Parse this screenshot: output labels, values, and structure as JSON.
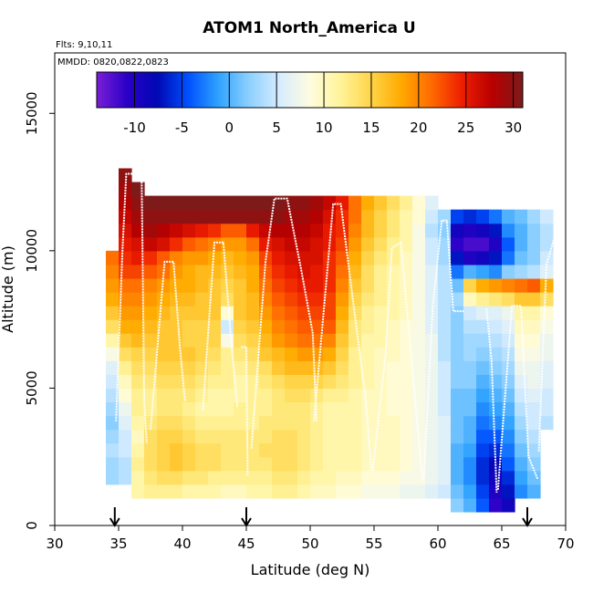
{
  "chart_data": {
    "type": "heatmap",
    "title": "ATOM1 North_America U",
    "subtitle_flights": "Flts: 9,10,11",
    "subtitle_dates": "MMDD: 0820,0822,0823",
    "xlabel": "Latitude (deg N)",
    "ylabel": "Altitude (m)",
    "xlim": [
      30,
      70
    ],
    "ylim": [
      0,
      17200
    ],
    "x_ticks": [
      30,
      35,
      40,
      45,
      50,
      55,
      60,
      65,
      70
    ],
    "y_ticks": [
      0,
      5000,
      10000,
      15000
    ],
    "colorbar": {
      "min": -14,
      "max": 31,
      "ticks": [
        -10,
        -5,
        0,
        5,
        10,
        15,
        20,
        25,
        30
      ],
      "colors": [
        "#7a1fd6",
        "#2a00c8",
        "#0008b4",
        "#0050ff",
        "#2fa2ff",
        "#8cd0ff",
        "#d6ecff",
        "#fffce0",
        "#fff49a",
        "#ffd54a",
        "#ffaa00",
        "#ff6a00",
        "#ee1e00",
        "#b80000",
        "#7d1a1a"
      ]
    },
    "flight_markers_latitude": [
      34.7,
      45.0,
      67.0
    ],
    "grid": false,
    "cell_resolution": {
      "lat_deg": 1,
      "alt_m": 500
    },
    "columns": [
      {
        "lat": 34.5,
        "bottom": 1500,
        "top": 10000,
        "values": [
          3,
          3,
          4,
          3,
          2,
          3,
          4,
          5,
          6,
          8,
          11,
          14,
          16,
          18,
          19,
          20,
          21
        ]
      },
      {
        "lat": 35.5,
        "bottom": 1500,
        "top": 13000,
        "values": [
          4,
          4,
          5,
          5,
          6,
          7,
          9,
          10,
          12,
          14,
          16,
          18,
          19,
          20,
          21,
          23,
          24,
          25,
          26,
          27,
          28,
          29,
          30
        ]
      },
      {
        "lat": 36.5,
        "bottom": 1000,
        "top": 12500,
        "values": [
          11,
          11,
          12,
          11,
          10,
          11,
          12,
          12,
          13,
          14,
          15,
          17,
          18,
          19,
          20,
          21,
          23,
          25,
          26,
          28,
          29,
          30,
          31
        ]
      },
      {
        "lat": 37.5,
        "bottom": 1000,
        "top": 12000,
        "values": [
          12,
          13,
          14,
          14,
          14,
          13,
          12,
          12,
          13,
          14,
          15,
          16,
          17,
          18,
          19,
          20,
          22,
          24,
          27,
          29,
          30,
          31
        ]
      },
      {
        "lat": 38.5,
        "bottom": 1000,
        "top": 12000,
        "values": [
          12,
          14,
          15,
          15,
          15,
          14,
          13,
          13,
          14,
          15,
          16,
          16,
          16,
          17,
          18,
          19,
          21,
          22,
          26,
          28,
          30,
          31
        ]
      },
      {
        "lat": 39.5,
        "bottom": 1000,
        "top": 12000,
        "values": [
          12,
          14,
          16,
          16,
          15,
          14,
          13,
          13,
          14,
          15,
          16,
          16,
          16,
          16,
          17,
          18,
          19,
          20,
          24,
          27,
          30,
          31
        ]
      },
      {
        "lat": 40.5,
        "bottom": 1000,
        "top": 12000,
        "values": [
          11,
          13,
          15,
          15,
          14,
          13,
          12,
          13,
          14,
          15,
          16,
          15,
          15,
          16,
          17,
          18,
          18,
          19,
          22,
          26,
          30,
          31
        ]
      },
      {
        "lat": 41.5,
        "bottom": 1000,
        "top": 12000,
        "values": [
          11,
          13,
          14,
          14,
          13,
          12,
          11,
          12,
          13,
          14,
          15,
          15,
          15,
          16,
          16,
          17,
          17,
          19,
          21,
          25,
          30,
          31
        ]
      },
      {
        "lat": 42.5,
        "bottom": 1000,
        "top": 12000,
        "values": [
          11,
          12,
          14,
          14,
          13,
          12,
          11,
          11,
          12,
          13,
          14,
          15,
          15,
          16,
          16,
          16,
          17,
          18,
          20,
          24,
          30,
          31
        ]
      },
      {
        "lat": 43.5,
        "bottom": 1000,
        "top": 12000,
        "values": [
          10,
          12,
          13,
          13,
          13,
          12,
          11,
          11,
          12,
          12,
          12,
          8,
          5,
          9,
          14,
          15,
          16,
          17,
          19,
          22,
          30,
          31
        ]
      },
      {
        "lat": 44.5,
        "bottom": 1000,
        "top": 12000,
        "values": [
          10,
          12,
          13,
          13,
          13,
          12,
          12,
          11,
          11,
          12,
          13,
          14,
          15,
          16,
          16,
          16,
          17,
          18,
          19,
          22,
          30,
          31
        ]
      },
      {
        "lat": 45.5,
        "bottom": 1000,
        "top": 12000,
        "values": [
          11,
          12,
          13,
          13,
          13,
          12,
          12,
          12,
          12,
          13,
          14,
          15,
          16,
          17,
          17,
          18,
          18,
          19,
          21,
          25,
          30,
          31
        ]
      },
      {
        "lat": 46.5,
        "bottom": 1000,
        "top": 12000,
        "values": [
          11,
          12,
          13,
          14,
          13,
          13,
          12,
          12,
          13,
          14,
          16,
          17,
          18,
          19,
          20,
          21,
          22,
          23,
          25,
          27,
          30,
          31
        ]
      },
      {
        "lat": 47.5,
        "bottom": 1000,
        "top": 12000,
        "values": [
          12,
          13,
          14,
          14,
          14,
          13,
          13,
          13,
          14,
          16,
          17,
          19,
          20,
          21,
          22,
          23,
          24,
          25,
          26,
          28,
          30,
          31
        ]
      },
      {
        "lat": 48.5,
        "bottom": 1000,
        "top": 12000,
        "values": [
          12,
          13,
          14,
          14,
          14,
          13,
          13,
          14,
          15,
          17,
          18,
          20,
          21,
          22,
          23,
          24,
          25,
          26,
          27,
          28,
          29,
          30
        ]
      },
      {
        "lat": 49.5,
        "bottom": 1000,
        "top": 12000,
        "values": [
          11,
          12,
          13,
          13,
          13,
          13,
          13,
          14,
          15,
          17,
          19,
          21,
          22,
          23,
          24,
          25,
          26,
          26,
          27,
          28,
          29,
          30
        ]
      },
      {
        "lat": 50.5,
        "bottom": 1000,
        "top": 12000,
        "values": [
          10,
          11,
          12,
          12,
          12,
          12,
          12,
          13,
          15,
          17,
          19,
          21,
          22,
          23,
          24,
          25,
          25,
          26,
          26,
          27,
          28,
          29
        ]
      },
      {
        "lat": 51.5,
        "bottom": 1000,
        "top": 12000,
        "values": [
          10,
          11,
          11,
          11,
          11,
          11,
          11,
          12,
          14,
          16,
          18,
          20,
          22,
          23,
          23,
          24,
          24,
          24,
          25,
          25,
          26,
          27
        ]
      },
      {
        "lat": 52.5,
        "bottom": 1000,
        "top": 12000,
        "values": [
          9,
          10,
          11,
          11,
          11,
          11,
          11,
          12,
          13,
          14,
          15,
          16,
          17,
          18,
          19,
          20,
          21,
          22,
          23,
          24,
          24,
          25
        ]
      },
      {
        "lat": 53.5,
        "bottom": 1000,
        "top": 12000,
        "values": [
          9,
          10,
          11,
          11,
          11,
          11,
          11,
          11,
          12,
          12,
          12,
          13,
          13,
          14,
          15,
          16,
          17,
          18,
          19,
          20,
          21,
          21
        ]
      },
      {
        "lat": 54.5,
        "bottom": 1000,
        "top": 12000,
        "values": [
          8,
          9,
          10,
          10,
          10,
          10,
          10,
          10,
          11,
          11,
          11,
          11,
          12,
          12,
          13,
          14,
          14,
          15,
          16,
          17,
          17,
          18
        ]
      },
      {
        "lat": 55.5,
        "bottom": 1000,
        "top": 12000,
        "values": [
          8,
          9,
          10,
          10,
          10,
          10,
          10,
          10,
          10,
          10,
          10,
          11,
          11,
          11,
          12,
          12,
          12,
          13,
          14,
          15,
          15,
          16
        ]
      },
      {
        "lat": 56.5,
        "bottom": 1000,
        "top": 12000,
        "values": [
          8,
          9,
          10,
          10,
          10,
          10,
          9,
          9,
          9,
          9,
          10,
          10,
          10,
          11,
          11,
          11,
          11,
          12,
          12,
          13,
          13,
          14
        ]
      },
      {
        "lat": 57.5,
        "bottom": 1000,
        "top": 12000,
        "values": [
          7,
          8,
          9,
          9,
          9,
          9,
          9,
          9,
          9,
          9,
          9,
          9,
          9,
          10,
          10,
          10,
          10,
          10,
          11,
          11,
          11,
          12
        ]
      },
      {
        "lat": 58.5,
        "bottom": 1000,
        "top": 12000,
        "values": [
          7,
          8,
          8,
          8,
          8,
          8,
          8,
          8,
          8,
          8,
          8,
          8,
          8,
          8,
          8,
          8,
          8,
          8,
          8,
          8,
          9,
          9
        ]
      },
      {
        "lat": 59.5,
        "bottom": 1000,
        "top": 12000,
        "values": [
          6,
          7,
          7,
          7,
          7,
          7,
          7,
          7,
          7,
          7,
          7,
          7,
          6,
          6,
          6,
          6,
          6,
          5,
          5,
          4,
          5,
          6
        ]
      },
      {
        "lat": 60.5,
        "bottom": 1000,
        "top": 11500,
        "values": [
          5,
          6,
          6,
          6,
          6,
          6,
          5,
          5,
          5,
          5,
          4,
          4,
          4,
          4,
          4,
          4,
          4,
          3,
          3,
          2,
          3
        ]
      },
      {
        "lat": 61.5,
        "bottom": 500,
        "top": 11500,
        "values": [
          2,
          1,
          0,
          0,
          0,
          1,
          1,
          1,
          1,
          2,
          2,
          2,
          2,
          2,
          2,
          3,
          1,
          -3,
          -7,
          -11,
          -9,
          -5
        ]
      },
      {
        "lat": 62.5,
        "bottom": 500,
        "top": 11500,
        "values": [
          0,
          -1,
          -2,
          -2,
          -1,
          0,
          0,
          1,
          1,
          2,
          2,
          3,
          3,
          4,
          5,
          10,
          15,
          0,
          -10,
          -12,
          -10,
          -6
        ]
      },
      {
        "lat": 63.5,
        "bottom": 500,
        "top": 11500,
        "values": [
          -4,
          -5,
          -6,
          -6,
          -5,
          -4,
          -3,
          -2,
          -1,
          0,
          1,
          2,
          3,
          4,
          6,
          12,
          18,
          -1,
          -9,
          -12,
          -9,
          -5
        ]
      },
      {
        "lat": 64.5,
        "bottom": 500,
        "top": 11500,
        "values": [
          -11,
          -10,
          -9,
          -8,
          -6,
          -4,
          -2,
          -1,
          0,
          1,
          2,
          3,
          4,
          5,
          6,
          13,
          19,
          -2,
          -7,
          -10,
          -7,
          -3
        ]
      },
      {
        "lat": 65.5,
        "bottom": 500,
        "top": 11500,
        "values": [
          -9,
          -7,
          -6,
          -4,
          -3,
          -2,
          -1,
          0,
          1,
          2,
          3,
          4,
          5,
          6,
          7,
          14,
          20,
          2,
          -3,
          -4,
          -2,
          0
        ]
      },
      {
        "lat": 66.5,
        "bottom": 1000,
        "top": 11500,
        "values": [
          -2,
          -1,
          0,
          1,
          2,
          3,
          4,
          5,
          6,
          7,
          8,
          9,
          10,
          11,
          16,
          21,
          3,
          1,
          0,
          0,
          1
        ]
      },
      {
        "lat": 67.5,
        "bottom": 1000,
        "top": 11500,
        "values": [
          0,
          1,
          2,
          3,
          4,
          5,
          5,
          6,
          7,
          7,
          8,
          9,
          10,
          11,
          16,
          22,
          4,
          2,
          2,
          2,
          3
        ]
      },
      {
        "lat": 68.5,
        "bottom": 3500,
        "top": 11500,
        "values": [
          4,
          5,
          5,
          6,
          6,
          7,
          7,
          8,
          9,
          14,
          18,
          6,
          5,
          4,
          4,
          5
        ]
      }
    ],
    "flight_tracks": [
      [
        [
          34.8,
          3800
        ],
        [
          35.3,
          10000
        ],
        [
          35.6,
          12800
        ],
        [
          36.8,
          12800
        ],
        [
          36.9,
          9000
        ],
        [
          37.0,
          4500
        ],
        [
          37.2,
          3000
        ]
      ],
      [
        [
          37.5,
          3500
        ],
        [
          38.6,
          9600
        ],
        [
          39.3,
          9600
        ],
        [
          39.8,
          6500
        ],
        [
          40.2,
          4500
        ]
      ],
      [
        [
          41.6,
          4200
        ],
        [
          42.5,
          10300
        ],
        [
          43.2,
          10300
        ],
        [
          43.8,
          6800
        ],
        [
          44.3,
          4300
        ]
      ],
      [
        [
          44.6,
          6500
        ],
        [
          45.0,
          6500
        ],
        [
          45.1,
          1800
        ]
      ],
      [
        [
          45.4,
          2800
        ],
        [
          46.5,
          9600
        ],
        [
          47.2,
          11900
        ],
        [
          48.2,
          11900
        ],
        [
          49.3,
          9300
        ],
        [
          50.2,
          7000
        ],
        [
          50.5,
          3800
        ]
      ],
      [
        [
          50.3,
          3800
        ],
        [
          51.8,
          11700
        ],
        [
          52.4,
          11700
        ],
        [
          53.4,
          8000
        ],
        [
          54.3,
          4800
        ],
        [
          54.8,
          2000
        ]
      ],
      [
        [
          54.9,
          2000
        ],
        [
          55.9,
          6200
        ],
        [
          56.4,
          10100
        ],
        [
          57.1,
          10300
        ],
        [
          57.9,
          6200
        ],
        [
          58.8,
          1600
        ]
      ],
      [
        [
          58.9,
          1700
        ],
        [
          59.6,
          8000
        ],
        [
          60.3,
          11100
        ],
        [
          60.7,
          11100
        ],
        [
          61.2,
          7800
        ],
        [
          62.0,
          7800
        ]
      ],
      [
        [
          63.8,
          7900
        ],
        [
          64.2,
          6000
        ],
        [
          64.6,
          1200
        ]
      ],
      [
        [
          64.7,
          1300
        ],
        [
          65.8,
          8000
        ],
        [
          66.5,
          8000
        ],
        [
          67.1,
          2500
        ],
        [
          67.8,
          1700
        ]
      ],
      [
        [
          67.9,
          2700
        ],
        [
          68.5,
          9500
        ],
        [
          69.2,
          10600
        ],
        [
          70.0,
          11200
        ]
      ]
    ]
  }
}
